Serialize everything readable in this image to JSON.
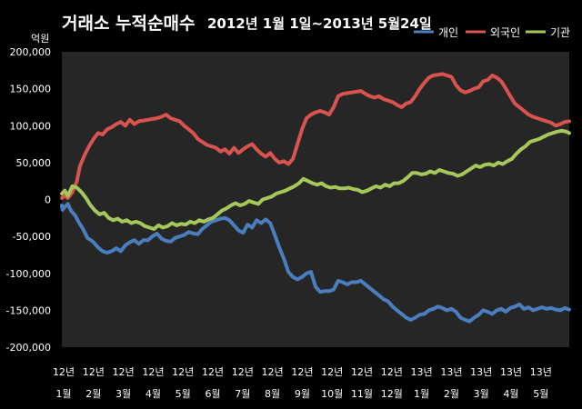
{
  "chart_data": {
    "type": "line",
    "title_main": "거래소 누적순매수",
    "title_sub": "2012년 1월 1일~2013년 5월24일",
    "ylabel": "억원",
    "ylim": [
      -200000,
      200000
    ],
    "yticks": [
      -200000,
      -150000,
      -100000,
      -50000,
      0,
      50000,
      100000,
      150000,
      200000
    ],
    "ytick_labels": [
      "-200,000",
      "-150,000",
      "-100,000",
      "-50,000",
      "0",
      "50,000",
      "100,000",
      "150,000",
      "200,000"
    ],
    "x_tick_labels": [
      {
        "year": "12년",
        "month": "1월"
      },
      {
        "year": "12년",
        "month": "2월"
      },
      {
        "year": "12년",
        "month": "3월"
      },
      {
        "year": "12년",
        "month": "4월"
      },
      {
        "year": "12년",
        "month": "5월"
      },
      {
        "year": "12년",
        "month": "6월"
      },
      {
        "year": "12년",
        "month": "7월"
      },
      {
        "year": "12년",
        "month": "8월"
      },
      {
        "year": "12년",
        "month": "9월"
      },
      {
        "year": "12년",
        "month": "10월"
      },
      {
        "year": "12년",
        "month": "11월"
      },
      {
        "year": "12년",
        "month": "12월"
      },
      {
        "year": "13년",
        "month": "1월"
      },
      {
        "year": "13년",
        "month": "2월"
      },
      {
        "year": "13년",
        "month": "3월"
      },
      {
        "year": "13년",
        "month": "4월"
      },
      {
        "year": "13년",
        "month": "5월"
      }
    ],
    "legend_position": "top-right",
    "grid": false,
    "series": [
      {
        "name": "개인",
        "color": "#4a7ebf",
        "x": [
          0.0,
          0.02,
          0.1,
          0.2,
          0.3,
          0.45,
          0.55,
          0.7,
          0.85,
          1.0,
          1.1,
          1.2,
          1.35,
          1.5,
          1.65,
          1.8,
          1.95,
          2.1,
          2.25,
          2.4,
          2.55,
          2.7,
          2.85,
          3.0,
          3.15,
          3.3,
          3.45,
          3.6,
          3.75,
          3.9,
          4.05,
          4.2,
          4.35,
          4.5,
          4.65,
          4.8,
          4.95,
          5.1,
          5.25,
          5.4,
          5.55,
          5.7,
          5.85,
          6.0,
          6.15,
          6.3,
          6.45,
          6.6,
          6.75,
          6.9,
          7.05,
          7.2,
          7.35,
          7.5,
          7.65,
          7.8,
          7.95,
          8.1,
          8.25,
          8.4,
          8.55,
          8.7,
          8.85,
          9.0,
          9.15,
          9.3,
          9.45,
          9.6,
          9.75,
          9.9,
          10.05,
          10.2,
          10.35,
          10.5,
          10.65,
          10.8,
          10.95,
          11.1,
          11.25,
          11.4,
          11.55,
          11.7,
          11.85,
          12.0,
          12.15,
          12.3,
          12.45,
          12.6,
          12.75,
          12.9,
          13.05,
          13.2,
          13.35,
          13.5,
          13.65,
          13.8,
          13.95,
          14.1,
          14.25,
          14.4,
          14.55,
          14.7,
          14.85,
          15.0,
          15.15,
          15.3,
          15.45,
          15.6,
          15.75,
          15.9,
          16.05,
          16.2,
          16.35,
          16.5,
          16.65,
          16.8
        ],
        "values": [
          -8000,
          -14000,
          -10000,
          -6000,
          -15000,
          -22000,
          -30000,
          -40000,
          -52000,
          -56000,
          -60000,
          -65000,
          -70000,
          -72000,
          -70000,
          -66000,
          -70000,
          -62000,
          -58000,
          -55000,
          -60000,
          -55000,
          -55000,
          -50000,
          -46000,
          -53000,
          -56000,
          -57000,
          -52000,
          -50000,
          -48000,
          -44000,
          -46000,
          -47000,
          -40000,
          -35000,
          -30000,
          -28000,
          -26000,
          -25000,
          -28000,
          -35000,
          -42000,
          -45000,
          -34000,
          -38000,
          -28000,
          -32000,
          -27000,
          -32000,
          -48000,
          -65000,
          -80000,
          -98000,
          -105000,
          -108000,
          -105000,
          -100000,
          -98000,
          -118000,
          -125000,
          -124000,
          -124000,
          -122000,
          -110000,
          -112000,
          -115000,
          -112000,
          -112000,
          -110000,
          -115000,
          -120000,
          -125000,
          -130000,
          -135000,
          -138000,
          -145000,
          -150000,
          -155000,
          -160000,
          -163000,
          -160000,
          -156000,
          -155000,
          -150000,
          -148000,
          -145000,
          -147000,
          -150000,
          -148000,
          -152000,
          -160000,
          -163000,
          -165000,
          -160000,
          -156000,
          -150000,
          -152000,
          -155000,
          -150000,
          -148000,
          -152000,
          -147000,
          -145000,
          -142000,
          -148000,
          -146000,
          -150000,
          -148000,
          -146000,
          -148000,
          -147000,
          -149000,
          -150000,
          -147000,
          -149000
        ]
      },
      {
        "name": "외국인",
        "color": "#d9534f",
        "x": [
          0.0,
          0.1,
          0.2,
          0.35,
          0.5,
          0.6,
          0.75,
          0.9,
          1.05,
          1.2,
          1.35,
          1.5,
          1.65,
          1.8,
          1.95,
          2.1,
          2.25,
          2.4,
          2.55,
          2.7,
          2.85,
          3.0,
          3.15,
          3.3,
          3.45,
          3.6,
          3.75,
          3.9,
          4.05,
          4.2,
          4.35,
          4.5,
          4.65,
          4.8,
          4.95,
          5.1,
          5.25,
          5.4,
          5.55,
          5.7,
          5.85,
          6.0,
          6.15,
          6.3,
          6.45,
          6.6,
          6.75,
          6.9,
          7.05,
          7.2,
          7.35,
          7.5,
          7.65,
          7.8,
          7.95,
          8.1,
          8.25,
          8.4,
          8.55,
          8.7,
          8.85,
          9.0,
          9.15,
          9.3,
          9.45,
          9.6,
          9.75,
          9.9,
          10.05,
          10.2,
          10.35,
          10.5,
          10.65,
          10.8,
          10.95,
          11.1,
          11.25,
          11.4,
          11.55,
          11.7,
          11.85,
          12.0,
          12.15,
          12.3,
          12.45,
          12.6,
          12.75,
          12.9,
          13.05,
          13.2,
          13.35,
          13.5,
          13.65,
          13.8,
          13.95,
          14.1,
          14.25,
          14.4,
          14.55,
          14.7,
          14.85,
          15.0,
          15.15,
          15.3,
          15.45,
          15.6,
          15.75,
          15.9,
          16.05,
          16.2,
          16.35,
          16.5,
          16.65,
          16.8
        ],
        "values": [
          2000,
          5000,
          2000,
          10000,
          25000,
          45000,
          60000,
          72000,
          82000,
          90000,
          88000,
          95000,
          98000,
          102000,
          105000,
          100000,
          108000,
          102000,
          106000,
          107000,
          108000,
          109000,
          110000,
          112000,
          115000,
          110000,
          108000,
          106000,
          100000,
          95000,
          90000,
          82000,
          78000,
          74000,
          72000,
          70000,
          65000,
          68000,
          62000,
          70000,
          63000,
          68000,
          72000,
          75000,
          68000,
          62000,
          58000,
          63000,
          55000,
          50000,
          52000,
          48000,
          55000,
          75000,
          95000,
          110000,
          115000,
          118000,
          120000,
          118000,
          115000,
          125000,
          140000,
          143000,
          144000,
          145000,
          146000,
          147000,
          143000,
          140000,
          138000,
          140000,
          136000,
          134000,
          132000,
          128000,
          125000,
          130000,
          132000,
          140000,
          150000,
          158000,
          165000,
          168000,
          169000,
          170000,
          168000,
          166000,
          155000,
          148000,
          145000,
          147000,
          150000,
          152000,
          160000,
          162000,
          168000,
          165000,
          160000,
          150000,
          140000,
          130000,
          125000,
          120000,
          115000,
          112000,
          110000,
          108000,
          106000,
          104000,
          100000,
          102000,
          105000,
          106000
        ]
      },
      {
        "name": "기관",
        "color": "#a6c85a",
        "x": [
          0.0,
          0.1,
          0.2,
          0.35,
          0.5,
          0.65,
          0.8,
          0.95,
          1.1,
          1.25,
          1.4,
          1.55,
          1.7,
          1.85,
          2.0,
          2.15,
          2.3,
          2.45,
          2.6,
          2.75,
          2.9,
          3.05,
          3.2,
          3.35,
          3.5,
          3.65,
          3.8,
          3.95,
          4.1,
          4.25,
          4.4,
          4.55,
          4.7,
          4.85,
          5.0,
          5.15,
          5.3,
          5.45,
          5.6,
          5.75,
          5.9,
          6.05,
          6.2,
          6.35,
          6.5,
          6.65,
          6.8,
          6.95,
          7.1,
          7.25,
          7.4,
          7.55,
          7.7,
          7.85,
          8.0,
          8.15,
          8.3,
          8.45,
          8.6,
          8.75,
          8.9,
          9.05,
          9.2,
          9.35,
          9.5,
          9.65,
          9.8,
          9.95,
          10.1,
          10.25,
          10.4,
          10.55,
          10.7,
          10.85,
          11.0,
          11.15,
          11.3,
          11.45,
          11.6,
          11.75,
          11.9,
          12.05,
          12.2,
          12.35,
          12.5,
          12.65,
          12.8,
          12.95,
          13.1,
          13.25,
          13.4,
          13.55,
          13.7,
          13.85,
          14.0,
          14.15,
          14.3,
          14.45,
          14.6,
          14.75,
          14.9,
          15.05,
          15.2,
          15.35,
          15.5,
          15.65,
          15.8,
          15.95,
          16.1,
          16.25,
          16.4,
          16.55,
          16.7,
          16.8
        ],
        "values": [
          8000,
          12000,
          5000,
          18000,
          16000,
          10000,
          2000,
          -8000,
          -15000,
          -20000,
          -18000,
          -25000,
          -28000,
          -26000,
          -30000,
          -28000,
          -32000,
          -30000,
          -32000,
          -36000,
          -38000,
          -40000,
          -35000,
          -38000,
          -36000,
          -32000,
          -35000,
          -33000,
          -34000,
          -30000,
          -32000,
          -28000,
          -30000,
          -27000,
          -25000,
          -20000,
          -15000,
          -12000,
          -8000,
          -5000,
          -8000,
          -6000,
          -2000,
          -4000,
          -6000,
          0,
          2000,
          4000,
          8000,
          10000,
          12000,
          15000,
          18000,
          22000,
          28000,
          25000,
          22000,
          20000,
          22000,
          18000,
          16000,
          17000,
          15000,
          15000,
          16000,
          14000,
          13000,
          10000,
          12000,
          15000,
          18000,
          16000,
          20000,
          18000,
          22000,
          22000,
          25000,
          30000,
          36000,
          36000,
          34000,
          35000,
          38000,
          36000,
          40000,
          38000,
          36000,
          35000,
          32000,
          34000,
          38000,
          42000,
          46000,
          44000,
          47000,
          48000,
          46000,
          50000,
          48000,
          52000,
          55000,
          62000,
          68000,
          72000,
          78000,
          80000,
          82000,
          85000,
          88000,
          90000,
          92000,
          93000,
          92000,
          90000
        ]
      }
    ]
  }
}
